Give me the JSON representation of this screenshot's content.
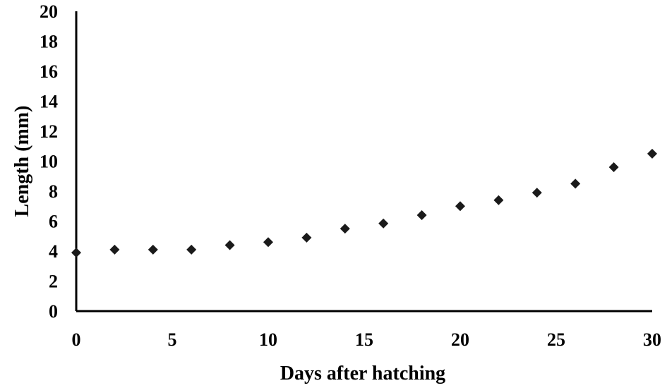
{
  "chart_data": {
    "type": "scatter",
    "xlabel": "Days after hatching",
    "ylabel": "Length (mm)",
    "xlim": [
      0,
      30
    ],
    "ylim": [
      0,
      20
    ],
    "x_ticks": [
      0,
      5,
      10,
      15,
      20,
      25,
      30
    ],
    "y_ticks": [
      0,
      2,
      4,
      6,
      8,
      10,
      12,
      14,
      16,
      18,
      20
    ],
    "grid": false,
    "legend": "none",
    "marker": "diamond",
    "marker_color": "#1a1a1a",
    "series": [
      {
        "x": [
          0,
          2,
          4,
          6,
          8,
          10,
          12,
          14,
          16,
          18,
          20,
          22,
          24,
          26,
          28,
          30
        ],
        "y": [
          3.9,
          4.1,
          4.1,
          4.1,
          4.4,
          4.6,
          4.9,
          5.5,
          5.85,
          6.4,
          7.0,
          7.4,
          7.9,
          8.5,
          9.6,
          10.5
        ]
      }
    ]
  }
}
